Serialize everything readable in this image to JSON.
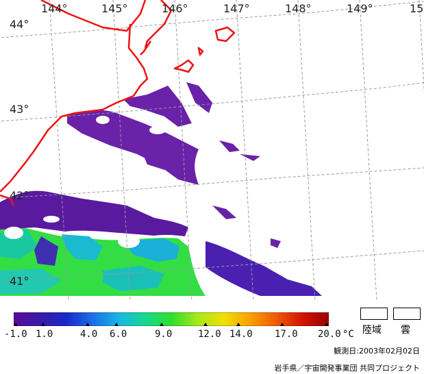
{
  "map": {
    "lon_labels": [
      "144°",
      "145°",
      "146°",
      "147°",
      "148°",
      "149°",
      "15"
    ],
    "lat_labels": [
      "44°",
      "43°",
      "42°",
      "41°"
    ]
  },
  "colorbar": {
    "ticks": [
      "-1.0",
      "1.0",
      "4.0",
      "6.0",
      "9.0",
      "12.0",
      "14.0",
      "17.0",
      "20.0"
    ],
    "unit": "°C",
    "colors": [
      "#5c0a9a",
      "#3a1aa8",
      "#1a28c8",
      "#1a6ee6",
      "#19b6e6",
      "#17d890",
      "#2ce02a",
      "#a8e81a",
      "#f0e000",
      "#f8a000",
      "#f05a00",
      "#d01400",
      "#9a0000"
    ]
  },
  "legend": {
    "land_label": "陸域",
    "cloud_label": "雲"
  },
  "observation_date": "観測日:2003年02月02日",
  "credit": "岩手県／宇宙開発事業団 共同プロジェクト",
  "colors": {
    "coastline": "#ee1111",
    "grid": "#999999",
    "sst_cold": "#5a1aa0",
    "sst_cool": "#2a55d8",
    "sst_mid": "#1ad0c0",
    "sst_warm": "#33dd33"
  }
}
